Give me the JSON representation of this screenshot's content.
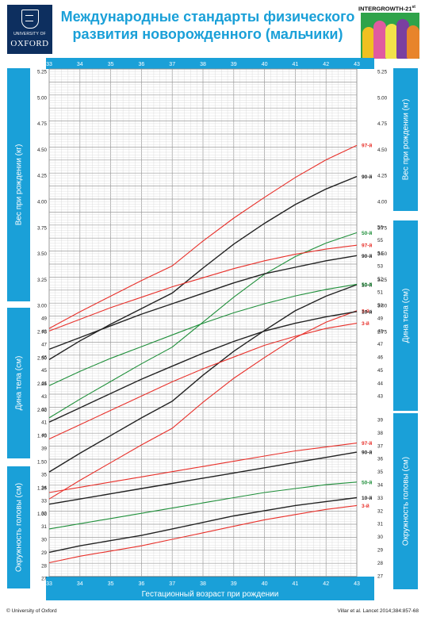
{
  "header": {
    "title_line1": "Международные стандарты  физического",
    "title_line2": "развития новорожденного (мальчики)",
    "university": "UNIVERSITY OF",
    "oxford": "OXFORD",
    "intergrowth": "INTERGROWTH-21",
    "intergrowth_sup": "st"
  },
  "sidebars": {
    "weight": "Вес при рождении (кг)",
    "length": "Дина тела (см)",
    "head": "Окружность головы (см)"
  },
  "footer": {
    "left": "© University of Oxford",
    "right": "Villar et al. Lancet 2014;384:857-68"
  },
  "colors": {
    "accent": "#1aa0d8",
    "p3": "#e8302a",
    "p10": "#222222",
    "p50": "#1f8f3a",
    "p90": "#222222",
    "p97": "#e8302a"
  },
  "chart_data": {
    "type": "line",
    "xlabel": "Гестационный возраст при рождении",
    "x": [
      33,
      34,
      35,
      36,
      37,
      38,
      39,
      40,
      41,
      42,
      43
    ],
    "xlim": [
      33,
      43
    ],
    "grid": true,
    "percentile_labels": [
      "3-й",
      "10-й",
      "50-й",
      "90-й",
      "97-й"
    ],
    "panels": [
      {
        "name": "weight",
        "ylabel": "Вес при рождении (кг)",
        "yticks": [
          "5.25",
          "5.00",
          "4.75",
          "4.50",
          "4.25",
          "4.00",
          "3.75",
          "3.50",
          "3.25",
          "3.00",
          "2.75",
          "2.50",
          "2.25",
          "2.00",
          "1.75",
          "1.50",
          "1.25",
          "1.00"
        ],
        "yticks_right": [
          "5.25",
          "5.00",
          "4.75",
          "4.50",
          "4.25",
          "4.00",
          "3.75",
          "3.50",
          "3.25",
          "3.00",
          "2.75"
        ],
        "series": [
          {
            "name": "97-й",
            "values": [
              2.78,
              2.94,
              3.09,
              3.24,
              3.38,
              3.62,
              3.84,
              4.04,
              4.23,
              4.4,
              4.54
            ]
          },
          {
            "name": "90-й",
            "values": [
              2.48,
              2.66,
              2.82,
              2.97,
              3.12,
              3.36,
              3.59,
              3.79,
              3.97,
              4.12,
              4.24
            ]
          },
          {
            "name": "50-й",
            "values": [
              1.92,
              2.1,
              2.27,
              2.44,
              2.6,
              2.84,
              3.08,
              3.3,
              3.47,
              3.6,
              3.7
            ]
          },
          {
            "name": "10-й",
            "values": [
              1.4,
              1.58,
              1.75,
              1.92,
              2.08,
              2.33,
              2.56,
              2.76,
              2.95,
              3.09,
              3.2
            ]
          },
          {
            "name": "3-й",
            "values": [
              1.14,
              1.32,
              1.49,
              1.66,
              1.82,
              2.07,
              2.3,
              2.5,
              2.69,
              2.84,
              2.95
            ]
          }
        ]
      },
      {
        "name": "length",
        "ylabel": "Дина тела (см)",
        "yticks": [
          "49",
          "48",
          "47",
          "46",
          "45",
          "44",
          "43",
          "42",
          "41",
          "40",
          "39"
        ],
        "yticks_right": [
          "56",
          "55",
          "54",
          "53",
          "52",
          "51",
          "50",
          "49",
          "48",
          "47",
          "46",
          "45",
          "44",
          "43"
        ],
        "series": [
          {
            "name": "97-й",
            "values": [
              48.0,
              48.9,
              49.8,
              50.6,
              51.4,
              52.1,
              52.8,
              53.4,
              53.9,
              54.3,
              54.6
            ]
          },
          {
            "name": "90-й",
            "values": [
              46.6,
              47.5,
              48.4,
              49.3,
              50.1,
              50.9,
              51.7,
              52.4,
              52.9,
              53.4,
              53.8
            ]
          },
          {
            "name": "50-й",
            "values": [
              43.8,
              44.9,
              45.9,
              46.8,
              47.7,
              48.6,
              49.4,
              50.1,
              50.7,
              51.2,
              51.6
            ]
          },
          {
            "name": "10-й",
            "values": [
              41.0,
              42.1,
              43.2,
              44.3,
              45.3,
              46.3,
              47.2,
              48.0,
              48.6,
              49.1,
              49.5
            ]
          },
          {
            "name": "3-й",
            "values": [
              39.7,
              40.8,
              41.9,
              43.0,
              44.1,
              45.1,
              46.0,
              46.9,
              47.6,
              48.2,
              48.6
            ]
          }
        ]
      },
      {
        "name": "head",
        "ylabel": "Окружность головы (см)",
        "yticks": [
          "35",
          "34",
          "33",
          "32",
          "31",
          "30",
          "29",
          "28",
          "27"
        ],
        "yticks_right": [
          "39",
          "38",
          "37",
          "36",
          "35",
          "34",
          "33",
          "32",
          "31",
          "30",
          "29",
          "28",
          "27"
        ],
        "series": [
          {
            "name": "97-й",
            "values": [
              33.6,
              34.0,
              34.4,
              34.8,
              35.2,
              35.6,
              36.0,
              36.4,
              36.8,
              37.1,
              37.4
            ]
          },
          {
            "name": "90-й",
            "values": [
              32.7,
              33.1,
              33.5,
              33.9,
              34.3,
              34.7,
              35.1,
              35.5,
              35.9,
              36.3,
              36.7
            ]
          },
          {
            "name": "50-й",
            "values": [
              30.8,
              31.2,
              31.6,
              32.0,
              32.4,
              32.8,
              33.2,
              33.6,
              33.9,
              34.2,
              34.4
            ]
          },
          {
            "name": "10-й",
            "values": [
              29.0,
              29.5,
              29.9,
              30.3,
              30.8,
              31.3,
              31.8,
              32.2,
              32.6,
              32.9,
              33.2
            ]
          },
          {
            "name": "3-й",
            "values": [
              28.2,
              28.7,
              29.1,
              29.5,
              30.0,
              30.5,
              31.0,
              31.5,
              31.9,
              32.3,
              32.6
            ]
          }
        ]
      }
    ]
  }
}
